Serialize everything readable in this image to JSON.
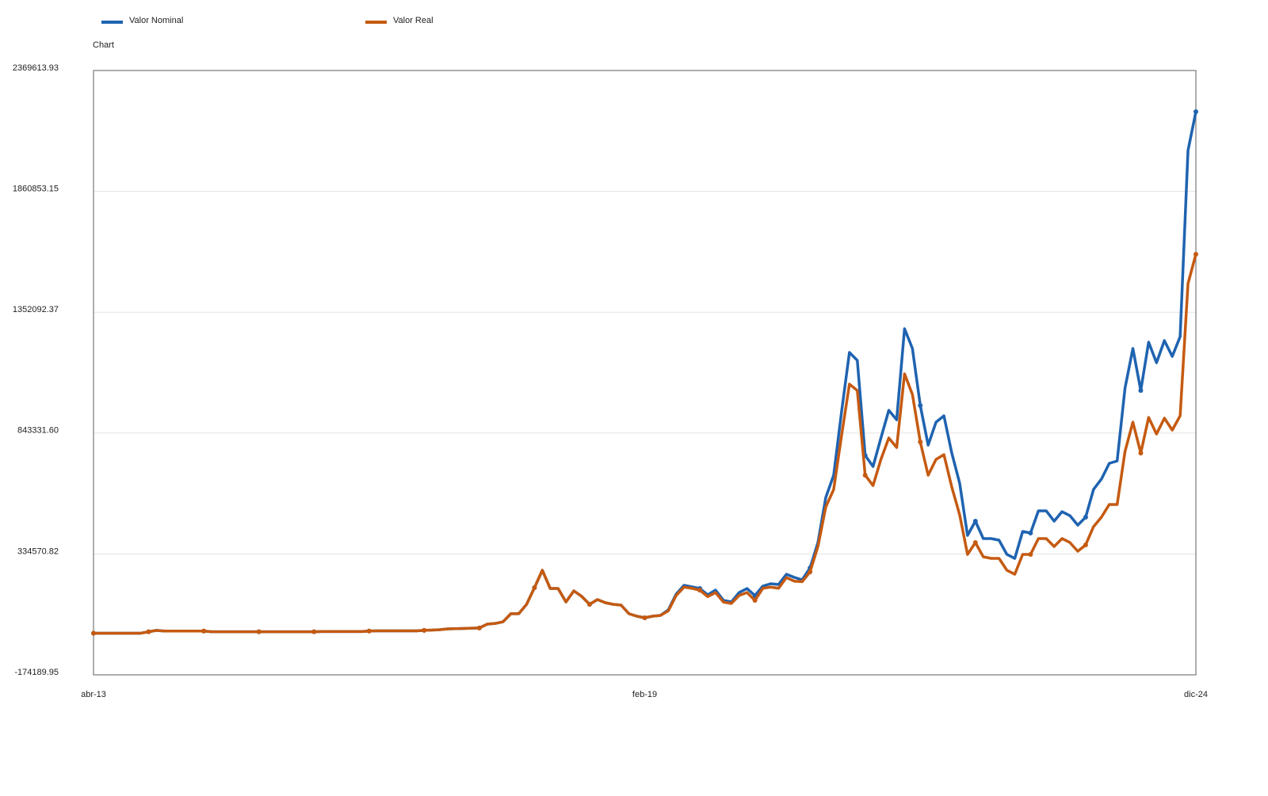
{
  "chart_data": {
    "type": "line",
    "title": "Chart",
    "categories": [
      "abr-13",
      null,
      null,
      null,
      null,
      null,
      null,
      null,
      null,
      null,
      null,
      null,
      null,
      null,
      null,
      null,
      null,
      null,
      null,
      null,
      null,
      null,
      null,
      null,
      null,
      null,
      null,
      null,
      null,
      null,
      null,
      null,
      null,
      null,
      null,
      null,
      null,
      null,
      null,
      null,
      null,
      null,
      null,
      null,
      null,
      null,
      null,
      null,
      null,
      null,
      null,
      null,
      null,
      null,
      null,
      null,
      null,
      null,
      null,
      null,
      null,
      null,
      null,
      null,
      null,
      null,
      null,
      null,
      null,
      null,
      "feb-19",
      null,
      null,
      null,
      null,
      null,
      null,
      null,
      null,
      null,
      null,
      null,
      null,
      null,
      null,
      null,
      null,
      null,
      null,
      null,
      null,
      null,
      null,
      null,
      null,
      null,
      null,
      null,
      null,
      null,
      null,
      null,
      null,
      null,
      null,
      null,
      null,
      null,
      null,
      null,
      null,
      null,
      null,
      null,
      null,
      null,
      null,
      null,
      null,
      null,
      null,
      null,
      null,
      null,
      null,
      null,
      null,
      null,
      null,
      null,
      null,
      null,
      null,
      null,
      null,
      null,
      null,
      null,
      null,
      null,
      "dic-24"
    ],
    "series": [
      {
        "name": "Valor Nominal",
        "color": "#1f63b0",
        "values": [
          1000,
          1000,
          1000,
          1000,
          1000,
          1000,
          1000,
          7000,
          13000,
          10000,
          10000,
          10000,
          10000,
          10000,
          10000,
          7000,
          7000,
          7000,
          7000,
          7000,
          7000,
          7000,
          7000,
          7000,
          7000,
          7000,
          7000,
          7000,
          7000,
          8000,
          8000,
          8000,
          8000,
          8000,
          8000,
          10000,
          11000,
          11000,
          11000,
          11000,
          11000,
          11000,
          13000,
          14000,
          16000,
          19000,
          20000,
          21000,
          22000,
          23000,
          39000,
          42000,
          49000,
          83000,
          83000,
          122500,
          192500,
          265900,
          189200,
          189200,
          132500,
          179200,
          155900,
          122500,
          142500,
          129200,
          122500,
          119200,
          83000,
          72500,
          65900,
          72500,
          75900,
          99200,
          165900,
          202600,
          195900,
          189200,
          162500,
          182500,
          139200,
          132500,
          172500,
          189200,
          159200,
          199200,
          209200,
          205900,
          249200,
          235900,
          225900,
          275900,
          382600,
          572600,
          666000,
          932700,
          1182700,
          1149400,
          749300,
          702700,
          822700,
          939400,
          899400,
          1282800,
          1199400,
          959400,
          792700,
          889400,
          916000,
          759300,
          632600,
          412600,
          472600,
          399300,
          399300,
          392600,
          332600,
          315900,
          429300,
          422600,
          515900,
          515900,
          472600,
          512600,
          495900,
          455900,
          489300,
          606000,
          649300,
          716000,
          726000,
          1032700,
          1199400,
          1022700,
          1226100,
          1139400,
          1232800,
          1166100,
          1249400,
          2032900,
          2196300
        ]
      },
      {
        "name": "Valor Real",
        "color": "#c55a11",
        "values": [
          1000,
          1000,
          1000,
          1000,
          1000,
          1000,
          1000,
          7000,
          13000,
          10000,
          10000,
          10000,
          10000,
          10000,
          10000,
          7000,
          7000,
          7000,
          7000,
          7000,
          7000,
          7000,
          7000,
          7000,
          7000,
          7000,
          7000,
          7000,
          7000,
          8000,
          8000,
          8000,
          8000,
          8000,
          8000,
          10000,
          11000,
          11000,
          11000,
          11000,
          11000,
          11000,
          13000,
          14000,
          16000,
          19000,
          20000,
          21000,
          22000,
          23000,
          39000,
          42000,
          49000,
          83000,
          83000,
          122500,
          192500,
          265900,
          189200,
          189200,
          132500,
          179200,
          155900,
          122500,
          142500,
          129200,
          122500,
          119200,
          83000,
          72500,
          65900,
          72500,
          75900,
          95000,
          160000,
          195000,
          190000,
          182000,
          155000,
          172000,
          132000,
          126000,
          160000,
          172000,
          139000,
          190000,
          195000,
          190000,
          235000,
          220000,
          218000,
          259200,
          365900,
          532600,
          606000,
          832700,
          1049400,
          1022700,
          666000,
          622600,
          732700,
          822700,
          782700,
          1092700,
          1006000,
          806000,
          666000,
          732700,
          752700,
          616000,
          499300,
          332600,
          382600,
          322600,
          315900,
          315900,
          265900,
          249200,
          332600,
          332600,
          399300,
          399300,
          365900,
          399300,
          382600,
          345900,
          372600,
          449300,
          489300,
          542600,
          542600,
          766000,
          889400,
          759300,
          909400,
          839400,
          906000,
          856000,
          916000,
          1472800,
          1596200
        ]
      }
    ],
    "ylim": [
      -174189.95,
      2369613.93
    ],
    "yticks": [
      -174189.95,
      334570.82,
      {
        "value": 843331.6,
        "label": "843331.60"
      },
      1352092.37,
      1860853.15,
      2369613.93
    ],
    "grid": true
  }
}
